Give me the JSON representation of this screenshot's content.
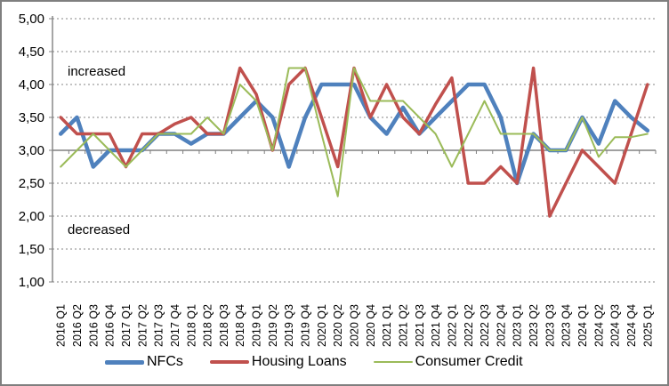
{
  "chart_data": {
    "type": "line",
    "categories": [
      "2016 Q1",
      "2016 Q2",
      "2016 Q3",
      "2016 Q4",
      "2017 Q1",
      "2017 Q2",
      "2017 Q3",
      "2017 Q4",
      "2018 Q1",
      "2018 Q2",
      "2018 Q3",
      "2018 Q4",
      "2019 Q1",
      "2019 Q2",
      "2019 Q3",
      "2019 Q4",
      "2020 Q1",
      "2020 Q2",
      "2020 Q3",
      "2020 Q4",
      "2021 Q1",
      "2021 Q2",
      "2021 Q3",
      "2021 Q4",
      "2022 Q1",
      "2022 Q2",
      "2022 Q3",
      "2022 Q4",
      "2023 Q1",
      "2023 Q2",
      "2023 Q3",
      "2023 Q4",
      "2024 Q1",
      "2024 Q2",
      "2024 Q3",
      "2024 Q4",
      "2025 Q1"
    ],
    "series": [
      {
        "name": "NFCs",
        "color": "#4F81BD",
        "stroke_width": 4.5,
        "values": [
          3.25,
          3.5,
          2.75,
          3.0,
          3.0,
          3.0,
          3.25,
          3.25,
          3.1,
          3.25,
          3.25,
          3.5,
          3.75,
          3.5,
          2.75,
          3.5,
          4.0,
          4.0,
          4.0,
          3.5,
          3.25,
          3.65,
          3.25,
          3.5,
          3.75,
          4.0,
          4.0,
          3.5,
          2.5,
          3.25,
          3.0,
          3.0,
          3.5,
          3.1,
          3.75,
          3.5,
          3.3
        ]
      },
      {
        "name": "Housing Loans",
        "color": "#C0504D",
        "stroke_width": 3.5,
        "values": [
          3.5,
          3.25,
          3.25,
          3.25,
          2.75,
          3.25,
          3.25,
          3.4,
          3.5,
          3.25,
          3.25,
          4.25,
          3.85,
          3.0,
          4.0,
          4.25,
          3.5,
          2.75,
          4.25,
          3.5,
          4.0,
          3.5,
          3.25,
          3.7,
          4.1,
          2.5,
          2.5,
          2.75,
          2.5,
          4.25,
          2.0,
          2.5,
          3.0,
          2.75,
          2.5,
          3.25,
          4.0
        ]
      },
      {
        "name": "Consumer Credit",
        "color": "#9BBB59",
        "stroke_width": 2,
        "values": [
          2.75,
          3.0,
          3.25,
          3.0,
          2.75,
          3.0,
          3.25,
          3.25,
          3.25,
          3.5,
          3.25,
          4.0,
          3.75,
          3.0,
          4.25,
          4.25,
          3.25,
          2.3,
          4.25,
          3.75,
          3.75,
          3.75,
          3.5,
          3.25,
          2.75,
          3.25,
          3.75,
          3.25,
          3.25,
          3.25,
          3.0,
          3.0,
          3.5,
          2.9,
          3.2,
          3.2,
          3.25
        ]
      }
    ],
    "title": "",
    "xlabel": "",
    "ylabel": "",
    "ylim": [
      1,
      5
    ],
    "gridline_step": 0.5,
    "grid": "horizontal dotted",
    "x_axis_crosses_at": 3.0,
    "legend_position": "bottom",
    "y_axis": {
      "values": [
        5,
        4.5,
        4,
        3.5,
        3,
        2.5,
        2,
        1.5,
        1
      ],
      "labels": [
        "5,00",
        "4,50",
        "4,00",
        "3,50",
        "3,00",
        "2,50",
        "2,00",
        "1,50",
        "1,00"
      ],
      "decimal_format": "comma"
    },
    "annotations": [
      {
        "text": "increased",
        "position": "upper-left"
      },
      {
        "text": "decreased",
        "position": "lower-left"
      }
    ]
  }
}
